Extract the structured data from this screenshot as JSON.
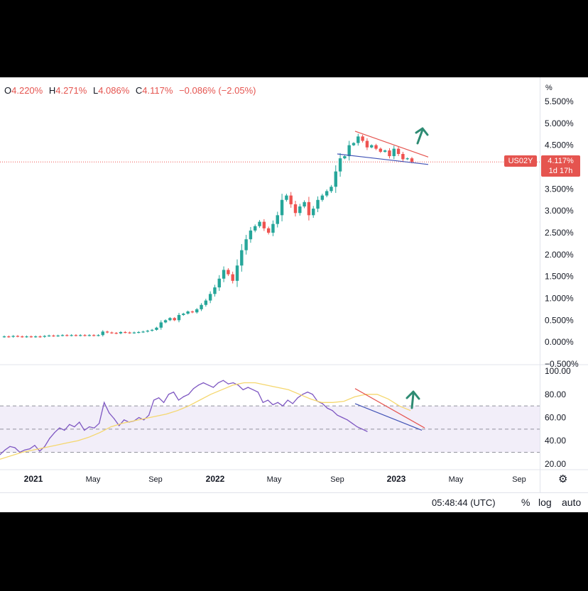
{
  "header": {
    "open_label": "O",
    "open": "4.220%",
    "high_label": "H",
    "high": "4.271%",
    "low_label": "L",
    "low": "4.086%",
    "close_label": "C",
    "close": "4.117%",
    "change": "−0.086% (−2.05%)"
  },
  "price_axis": {
    "unit": "%",
    "ticks": [
      "5.500%",
      "5.000%",
      "4.500%",
      "4.000%",
      "3.500%",
      "3.000%",
      "2.500%",
      "2.000%",
      "1.500%",
      "1.000%",
      "0.500%",
      "0.000%",
      "−0.500%"
    ]
  },
  "last_price": {
    "symbol": "US02Y",
    "price": "4.117%",
    "countdown": "1d 17h"
  },
  "rsi_axis": {
    "ticks": [
      "100.00",
      "80.00",
      "60.00",
      "40.00",
      "20.00"
    ]
  },
  "time_axis": {
    "labels": [
      "2021",
      "May",
      "Sep",
      "2022",
      "May",
      "Sep",
      "2023",
      "May",
      "Sep"
    ]
  },
  "bottom_bar": {
    "clock": "05:48:44 (UTC)",
    "percent": "%",
    "log": "log",
    "auto": "auto"
  },
  "colors": {
    "up": "#26a69a",
    "down": "#ef5350",
    "rsi": "#7e57c2",
    "rsi_ma": "#f5d76e",
    "resistance": "#e5544f",
    "support": "#3f51b5",
    "arrow": "#2e8b73"
  },
  "chart_data": [
    {
      "type": "candlestick",
      "title": "",
      "ylim": [
        -0.5,
        5.5
      ],
      "series": [
        {
          "name": "",
          "values": [
            0.13,
            0.12,
            0.14,
            0.13,
            0.12,
            0.13,
            0.12,
            0.13,
            0.12,
            0.14,
            0.15,
            0.14,
            0.15,
            0.16,
            0.15,
            0.16,
            0.15,
            0.16,
            0.15,
            0.16,
            0.15,
            0.16,
            0.24,
            0.22,
            0.21,
            0.2,
            0.23,
            0.22,
            0.21,
            0.22,
            0.23,
            0.24,
            0.26,
            0.28,
            0.33,
            0.45,
            0.5,
            0.55,
            0.5,
            0.62,
            0.65,
            0.7,
            0.68,
            0.75,
            0.85,
            0.95,
            1.1,
            1.25,
            1.45,
            1.65,
            1.55,
            1.4,
            1.75,
            2.1,
            2.35,
            2.55,
            2.65,
            2.75,
            2.6,
            2.5,
            2.7,
            2.9,
            3.25,
            3.35,
            3.15,
            2.95,
            3.1,
            3.2,
            2.9,
            3.05,
            3.25,
            3.35,
            3.45,
            3.55,
            3.9,
            4.2,
            4.25,
            4.5,
            4.55,
            4.7,
            4.6,
            4.45,
            4.5,
            4.42,
            4.35,
            4.38,
            4.25,
            4.42,
            4.3,
            4.18,
            4.2,
            4.12
          ]
        }
      ],
      "annotations": [
        "descending resistance line",
        "support line",
        "up arrow"
      ]
    },
    {
      "type": "line",
      "title": "",
      "ylim": [
        15,
        105
      ],
      "bands": [
        30,
        50,
        70
      ],
      "series": [
        {
          "name": "",
          "values": [
            28,
            32,
            35,
            34,
            30,
            32,
            33,
            36,
            31,
            35,
            42,
            47,
            51,
            49,
            54,
            52,
            56,
            49,
            52,
            51,
            55,
            73,
            64,
            59,
            53,
            58,
            56,
            57,
            60,
            58,
            62,
            75,
            77,
            73,
            80,
            82,
            75,
            78,
            80,
            85,
            88,
            90,
            88,
            86,
            90,
            92,
            89,
            90,
            88,
            84,
            86,
            84,
            82,
            73,
            75,
            71,
            73,
            70,
            75,
            72,
            77,
            80,
            82,
            80,
            74,
            72,
            68,
            66,
            62,
            60,
            58,
            55,
            52,
            50,
            48
          ]
        },
        {
          "name": "",
          "values": [
            24,
            27,
            30,
            32,
            34,
            36,
            38,
            40,
            43,
            47,
            52,
            55,
            57,
            59,
            61,
            63,
            66,
            70,
            75,
            80,
            84,
            88,
            90,
            90,
            88,
            86,
            84,
            80,
            76,
            73,
            73,
            74,
            78,
            80,
            80,
            76,
            70,
            66
          ]
        }
      ]
    }
  ]
}
